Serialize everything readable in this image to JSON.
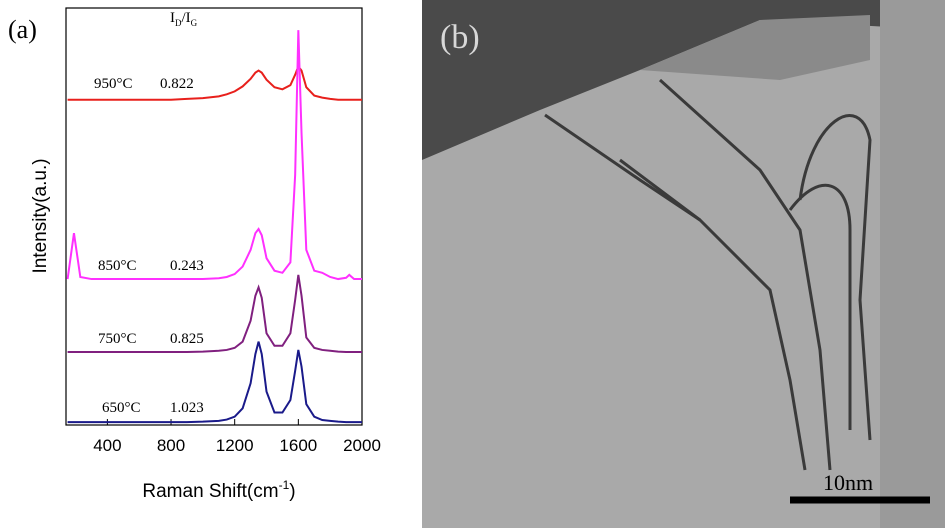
{
  "chart_data": {
    "type": "line",
    "panel_label": "(a)",
    "xlabel": [
      "Raman Shift(cm",
      "-1",
      ")"
    ],
    "ylabel": "Intensity(a.u.)",
    "ratio_header": [
      "I",
      "D",
      "/I",
      "G"
    ],
    "x": [
      150,
      190,
      230,
      300,
      400,
      500,
      600,
      700,
      800,
      900,
      1000,
      1100,
      1150,
      1200,
      1250,
      1300,
      1330,
      1350,
      1370,
      1400,
      1450,
      1500,
      1550,
      1580,
      1600,
      1620,
      1650,
      1700,
      1750,
      1800,
      1850,
      1900,
      1920,
      1950,
      2000
    ],
    "series": [
      {
        "name": "950°C",
        "ratio": 0.822,
        "color": "#e8201c",
        "values": [
          78,
          78,
          78,
          78,
          78,
          78,
          78,
          78,
          78,
          78.2,
          78.4,
          78.8,
          79.3,
          80,
          81.2,
          83,
          84.5,
          85,
          84.5,
          82.8,
          81,
          80.5,
          81.5,
          84,
          86,
          85,
          81,
          79,
          78.5,
          78.2,
          78,
          78,
          78,
          78,
          78
        ]
      },
      {
        "name": "850°C",
        "ratio": 0.243,
        "color": "#ff30ff",
        "values": [
          35,
          46,
          35.5,
          35,
          35,
          35,
          35,
          35,
          35,
          35,
          35,
          35.2,
          35.5,
          36.2,
          38,
          42,
          46,
          47,
          45.5,
          40,
          37,
          36.5,
          39,
          60,
          94.7,
          70,
          42,
          37,
          36.5,
          35.5,
          35,
          35.3,
          36,
          35,
          35
        ]
      },
      {
        "name": "750°C",
        "ratio": 0.825,
        "color": "#80207f",
        "values": [
          17.5,
          17.5,
          17.5,
          17.5,
          17.5,
          17.5,
          17.5,
          17.5,
          17.5,
          17.5,
          17.6,
          17.8,
          18,
          18.5,
          20,
          25,
          31,
          33,
          30.5,
          22,
          19,
          19,
          22,
          30,
          36,
          31,
          21,
          18.5,
          18,
          17.8,
          17.6,
          17.5,
          17.5,
          17.5,
          17.5
        ]
      },
      {
        "name": "650°C",
        "ratio": 1.023,
        "color": "#1a1a8a",
        "values": [
          0.7,
          0.7,
          0.7,
          0.7,
          0.7,
          0.7,
          0.7,
          0.7,
          0.7,
          0.7,
          0.8,
          1,
          1.3,
          2,
          4,
          10,
          17,
          20,
          17,
          8,
          3,
          3,
          6,
          13,
          18,
          14,
          5,
          2,
          1.2,
          1,
          0.8,
          0.7,
          0.7,
          0.7,
          0.7
        ]
      }
    ],
    "xlim": [
      140,
      2000
    ],
    "ylim": [
      0,
      100
    ],
    "xticks": [
      400,
      800,
      1200,
      1600,
      2000
    ]
  },
  "image_panel": {
    "label": "(b)",
    "scale_bar": "10nm"
  }
}
